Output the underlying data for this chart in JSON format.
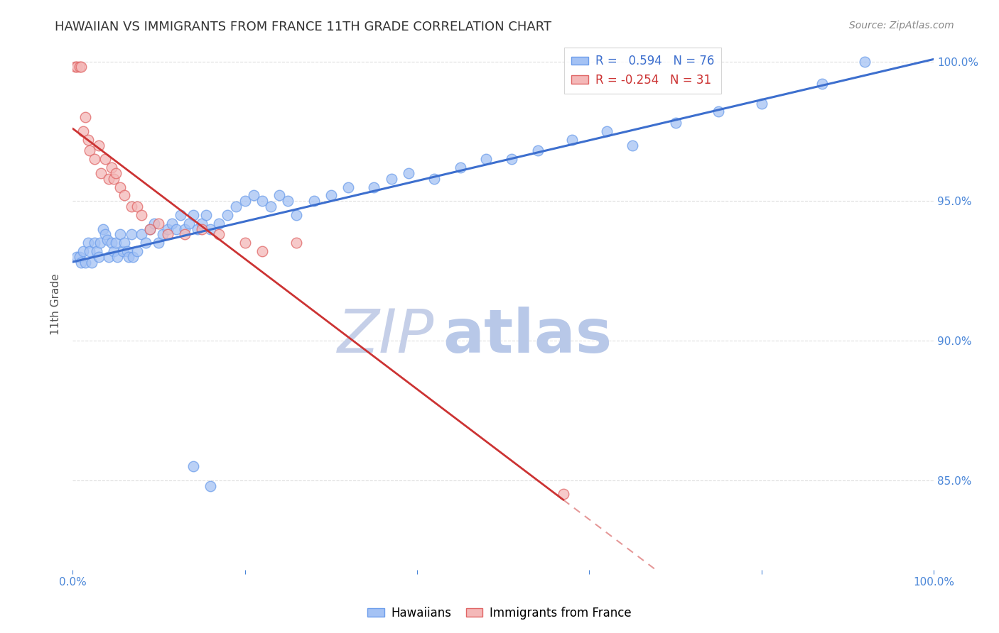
{
  "title": "HAWAIIAN VS IMMIGRANTS FROM FRANCE 11TH GRADE CORRELATION CHART",
  "source_text": "Source: ZipAtlas.com",
  "ylabel": "11th Grade",
  "xmin": 0.0,
  "xmax": 1.0,
  "ymin": 0.818,
  "ymax": 1.008,
  "yticks": [
    0.85,
    0.9,
    0.95,
    1.0
  ],
  "ytick_labels": [
    "85.0%",
    "90.0%",
    "95.0%",
    "100.0%"
  ],
  "xticks": [
    0.0,
    0.2,
    0.4,
    0.6,
    0.8,
    1.0
  ],
  "blue_R": 0.594,
  "blue_N": 76,
  "pink_R": -0.254,
  "pink_N": 31,
  "blue_color": "#a4c2f4",
  "pink_color": "#f4b8b8",
  "blue_edge_color": "#6d9eeb",
  "pink_edge_color": "#e06666",
  "blue_line_color": "#3d6fce",
  "pink_line_color": "#cc3333",
  "legend_label_blue": "Hawaiians",
  "legend_label_pink": "Immigrants from France",
  "blue_x": [
    0.005,
    0.008,
    0.01,
    0.012,
    0.015,
    0.018,
    0.02,
    0.022,
    0.025,
    0.028,
    0.03,
    0.032,
    0.035,
    0.038,
    0.04,
    0.042,
    0.045,
    0.048,
    0.05,
    0.052,
    0.055,
    0.058,
    0.06,
    0.063,
    0.065,
    0.068,
    0.07,
    0.075,
    0.08,
    0.085,
    0.09,
    0.095,
    0.1,
    0.105,
    0.11,
    0.115,
    0.12,
    0.125,
    0.13,
    0.135,
    0.14,
    0.145,
    0.15,
    0.155,
    0.16,
    0.17,
    0.18,
    0.19,
    0.2,
    0.21,
    0.22,
    0.23,
    0.24,
    0.25,
    0.26,
    0.28,
    0.3,
    0.32,
    0.35,
    0.37,
    0.39,
    0.42,
    0.45,
    0.48,
    0.51,
    0.54,
    0.58,
    0.62,
    0.65,
    0.7,
    0.75,
    0.8,
    0.87,
    0.92,
    0.14,
    0.16
  ],
  "blue_y": [
    0.93,
    0.93,
    0.928,
    0.932,
    0.928,
    0.935,
    0.932,
    0.928,
    0.935,
    0.932,
    0.93,
    0.935,
    0.94,
    0.938,
    0.936,
    0.93,
    0.935,
    0.932,
    0.935,
    0.93,
    0.938,
    0.932,
    0.935,
    0.932,
    0.93,
    0.938,
    0.93,
    0.932,
    0.938,
    0.935,
    0.94,
    0.942,
    0.935,
    0.938,
    0.94,
    0.942,
    0.94,
    0.945,
    0.94,
    0.942,
    0.945,
    0.94,
    0.942,
    0.945,
    0.94,
    0.942,
    0.945,
    0.948,
    0.95,
    0.952,
    0.95,
    0.948,
    0.952,
    0.95,
    0.945,
    0.95,
    0.952,
    0.955,
    0.955,
    0.958,
    0.96,
    0.958,
    0.962,
    0.965,
    0.965,
    0.968,
    0.972,
    0.975,
    0.97,
    0.978,
    0.982,
    0.985,
    0.992,
    1.0,
    0.855,
    0.848
  ],
  "pink_x": [
    0.003,
    0.005,
    0.008,
    0.01,
    0.012,
    0.015,
    0.018,
    0.02,
    0.025,
    0.03,
    0.033,
    0.038,
    0.042,
    0.045,
    0.048,
    0.05,
    0.055,
    0.06,
    0.068,
    0.075,
    0.08,
    0.09,
    0.1,
    0.11,
    0.13,
    0.15,
    0.17,
    0.2,
    0.22,
    0.26,
    0.57
  ],
  "pink_y": [
    0.998,
    0.998,
    0.998,
    0.998,
    0.975,
    0.98,
    0.972,
    0.968,
    0.965,
    0.97,
    0.96,
    0.965,
    0.958,
    0.962,
    0.958,
    0.96,
    0.955,
    0.952,
    0.948,
    0.948,
    0.945,
    0.94,
    0.942,
    0.938,
    0.938,
    0.94,
    0.938,
    0.935,
    0.932,
    0.935,
    0.845
  ],
  "watermark_zip": "ZIP",
  "watermark_atlas": "atlas",
  "watermark_color_zip": "#c5cfe8",
  "watermark_color_atlas": "#b8c8e8",
  "background_color": "#ffffff",
  "grid_color": "#dddddd",
  "title_fontsize": 13,
  "axis_label_fontsize": 11,
  "tick_fontsize": 11,
  "legend_fontsize": 12,
  "source_fontsize": 10
}
